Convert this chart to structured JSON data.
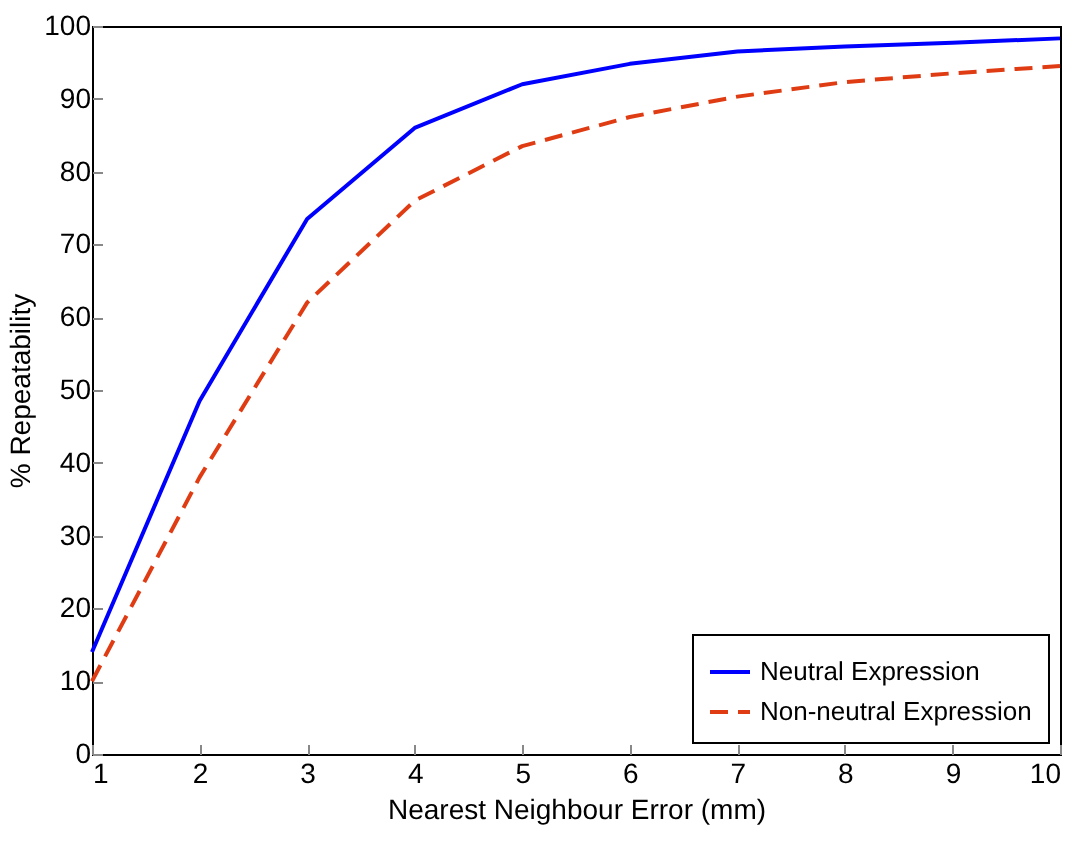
{
  "chart_data": {
    "type": "line",
    "xlabel": "Nearest Neighbour Error (mm)",
    "ylabel": "% Repeatability",
    "x": [
      1,
      2,
      3,
      4,
      5,
      6,
      7,
      8,
      9,
      10
    ],
    "series": [
      {
        "name": "Neutral Expression",
        "color": "#0000ff",
        "line_style": "solid",
        "values": [
          14,
          48.5,
          73.5,
          86,
          92,
          94.8,
          96.5,
          97.2,
          97.7,
          98.3
        ]
      },
      {
        "name": "Non-neutral Expression",
        "color": "#e03c14",
        "line_style": "dashed",
        "values": [
          10,
          38,
          62,
          76,
          83.5,
          87.5,
          90.3,
          92.3,
          93.5,
          94.5
        ]
      }
    ],
    "xlim": [
      1,
      10
    ],
    "xticks": [
      1,
      2,
      3,
      4,
      5,
      6,
      7,
      8,
      9,
      10
    ],
    "ylim": [
      0,
      100
    ],
    "yticks": [
      0,
      10,
      20,
      30,
      40,
      50,
      60,
      70,
      80,
      90,
      100
    ],
    "grid": false,
    "legend": "bottom right",
    "marker": "none"
  }
}
